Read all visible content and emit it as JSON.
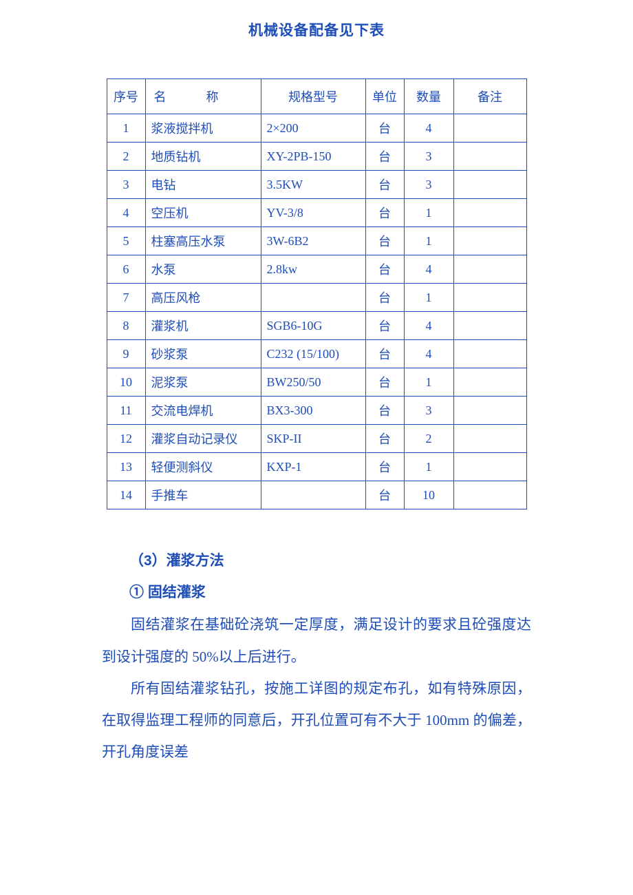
{
  "title": "机械设备配备见下表",
  "table": {
    "columns": {
      "seq": "序号",
      "name": "名称",
      "spec": "规格型号",
      "unit": "单位",
      "qty": "数量",
      "remark": "备注"
    },
    "rows": [
      {
        "seq": "1",
        "name": "浆液搅拌机",
        "spec": "2×200",
        "unit": "台",
        "qty": "4",
        "remark": ""
      },
      {
        "seq": "2",
        "name": "地质钻机",
        "spec": "XY-2PB-150",
        "unit": "台",
        "qty": "3",
        "remark": ""
      },
      {
        "seq": "3",
        "name": "电钻",
        "spec": "3.5KW",
        "unit": "台",
        "qty": "3",
        "remark": ""
      },
      {
        "seq": "4",
        "name": "空压机",
        "spec": "YV-3/8",
        "unit": "台",
        "qty": "1",
        "remark": ""
      },
      {
        "seq": "5",
        "name": "柱塞高压水泵",
        "spec": "3W-6B2",
        "unit": "台",
        "qty": "1",
        "remark": ""
      },
      {
        "seq": "6",
        "name": "水泵",
        "spec": "2.8kw",
        "unit": "台",
        "qty": "4",
        "remark": ""
      },
      {
        "seq": "7",
        "name": "高压风枪",
        "spec": "",
        "unit": "台",
        "qty": "1",
        "remark": ""
      },
      {
        "seq": "8",
        "name": "灌浆机",
        "spec": "SGB6-10G",
        "unit": "台",
        "qty": "4",
        "remark": ""
      },
      {
        "seq": "9",
        "name": "砂浆泵",
        "spec": "C232 (15/100)",
        "unit": "台",
        "qty": "4",
        "remark": ""
      },
      {
        "seq": "10",
        "name": "泥浆泵",
        "spec": "BW250/50",
        "unit": "台",
        "qty": "1",
        "remark": ""
      },
      {
        "seq": "11",
        "name": "交流电焊机",
        "spec": "BX3-300",
        "unit": "台",
        "qty": "3",
        "remark": ""
      },
      {
        "seq": "12",
        "name": "灌浆自动记录仪",
        "spec": "SKP-II",
        "unit": "台",
        "qty": "2",
        "remark": ""
      },
      {
        "seq": "13",
        "name": "轻便测斜仪",
        "spec": "KXP-1",
        "unit": "台",
        "qty": "1",
        "remark": ""
      },
      {
        "seq": "14",
        "name": "手推车",
        "spec": "",
        "unit": "台",
        "qty": "10",
        "remark": ""
      }
    ]
  },
  "sections": {
    "heading1": "（3）灌浆方法",
    "heading2": "① 固结灌浆",
    "p1": "固结灌浆在基础砼浇筑一定厚度，满足设计的要求且砼强度达到设计强度的 50%以上后进行。",
    "p2": "所有固结灌浆钻孔，按施工详图的规定布孔，如有特殊原因，在取得监理工程师的同意后，开孔位置可有不大于 100mm 的偏差，开孔角度误差"
  },
  "colors": {
    "text": "#1e4db7",
    "border": "#1e4db7",
    "background": "#ffffff"
  },
  "typography": {
    "title_fontsize": 21,
    "body_fontsize": 21,
    "table_fontsize": 18
  }
}
